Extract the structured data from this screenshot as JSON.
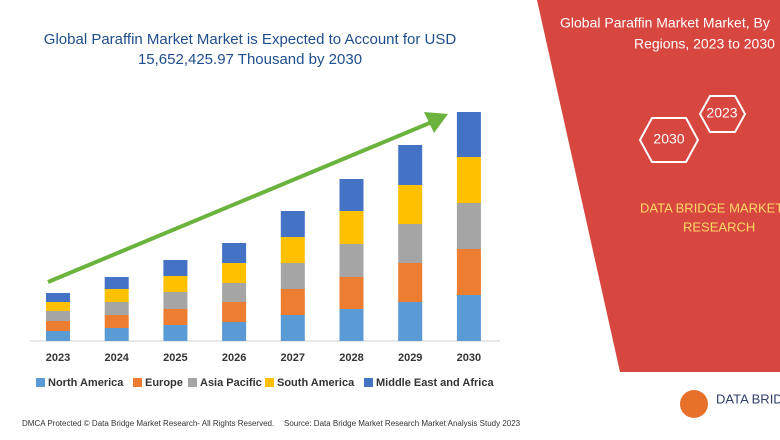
{
  "chart_data": {
    "type": "stacked_bar",
    "title": [
      "Global Paraffin Market Market is Expected to Account for USD",
      "15,652,425.97 Thousand by 2030"
    ],
    "categories": [
      "2023",
      "2024",
      "2025",
      "2026",
      "2027",
      "2028",
      "2029",
      "2030"
    ],
    "series": [
      {
        "name": "North America",
        "color": "#5b9bd5",
        "values": [
          10,
          13,
          16,
          19,
          26,
          32,
          39,
          46
        ]
      },
      {
        "name": "Europe",
        "color": "#ed7d31",
        "values": [
          10,
          13,
          16,
          20,
          26,
          32,
          39,
          46
        ]
      },
      {
        "name": "Asia Pacific",
        "color": "#a5a5a5",
        "values": [
          10,
          13,
          17,
          19,
          26,
          33,
          39,
          46
        ]
      },
      {
        "name": "South America",
        "color": "#ffc000",
        "values": [
          9,
          13,
          16,
          20,
          26,
          33,
          39,
          46
        ]
      },
      {
        "name": "Middle East and Africa",
        "color": "#4472c4",
        "values": [
          9,
          12,
          16,
          20,
          26,
          32,
          40,
          45
        ]
      }
    ]
  },
  "panel": {
    "title": [
      "Global Paraffin Market Market, By",
      "Regions, 2023 to 2030"
    ],
    "hex_start": "2023",
    "hex_end": "2030",
    "brand": [
      "DATA BRIDGE MARKET",
      "RESEARCH"
    ],
    "logo": "DATA BRIDGE"
  },
  "footer": {
    "left": "DMCA Protected © Data Bridge Market Research- All Rights Reserved.",
    "right": "Source: Data Bridge Market Research Market Analysis Study 2023"
  }
}
